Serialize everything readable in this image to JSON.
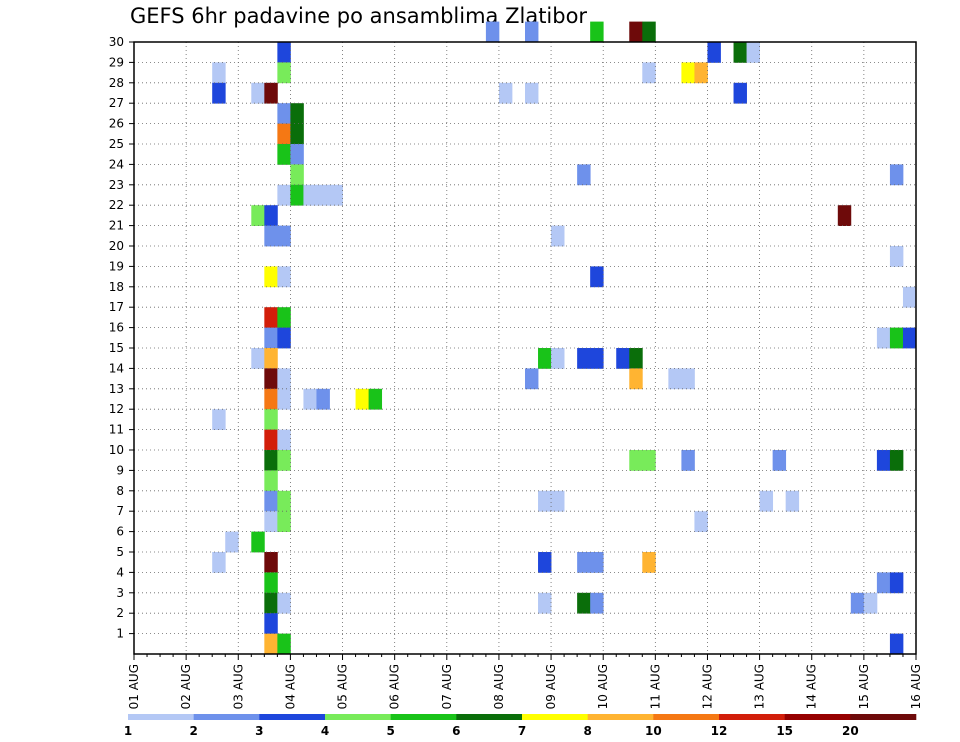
{
  "chart_data": {
    "type": "heatmap",
    "title": "GEFS 6hr padavine po ansamblima Zlatibor",
    "xlabel": "",
    "ylabel": "",
    "x_ticks": [
      "01 AUG",
      "02 AUG",
      "03 AUG",
      "04 AUG",
      "05 AUG",
      "06 AUG",
      "07 AUG",
      "08 AUG",
      "09 AUG",
      "10 AUG",
      "11 AUG",
      "12 AUG",
      "13 AUG",
      "14 AUG",
      "15 AUG",
      "16 AUG"
    ],
    "y_ticks": [
      1,
      2,
      3,
      4,
      5,
      6,
      7,
      8,
      9,
      10,
      11,
      12,
      13,
      14,
      15,
      16,
      17,
      18,
      19,
      20,
      21,
      22,
      23,
      24,
      25,
      26,
      27,
      28,
      29,
      30
    ],
    "x_unit": "6-hour step from 01 AUG 00Z",
    "xlim": [
      0,
      60
    ],
    "ylim": [
      0,
      30
    ],
    "grid": true,
    "colorbar": {
      "labels": [
        "1",
        "2",
        "3",
        "4",
        "5",
        "6",
        "7",
        "8",
        "10",
        "12",
        "15",
        "20"
      ],
      "colors": [
        "#b4c8f5",
        "#6e91eb",
        "#1e46dc",
        "#78eb5a",
        "#19c319",
        "#0a6e0a",
        "#ffff00",
        "#ffb432",
        "#f57814",
        "#d21e0a",
        "#960000",
        "#6e0a0a"
      ]
    },
    "cells": [
      [
        27,
        30,
        1
      ],
      [
        30,
        30,
        1
      ],
      [
        35,
        30,
        4
      ],
      [
        38,
        30,
        11
      ],
      [
        39,
        30,
        5
      ],
      [
        11,
        29,
        2
      ],
      [
        44,
        29,
        2
      ],
      [
        46,
        29,
        5
      ],
      [
        47,
        29,
        0
      ],
      [
        6,
        28,
        0
      ],
      [
        11,
        28,
        3
      ],
      [
        39,
        28,
        0
      ],
      [
        42,
        28,
        6
      ],
      [
        43,
        28,
        7
      ],
      [
        6,
        27,
        2
      ],
      [
        9,
        27,
        0
      ],
      [
        10,
        27,
        11
      ],
      [
        28,
        27,
        0
      ],
      [
        30,
        27,
        0
      ],
      [
        46,
        27,
        2
      ],
      [
        11,
        26,
        1
      ],
      [
        12,
        26,
        5
      ],
      [
        11,
        25,
        8
      ],
      [
        12,
        25,
        5
      ],
      [
        11,
        24,
        4
      ],
      [
        12,
        24,
        1
      ],
      [
        12,
        23,
        3
      ],
      [
        34,
        23,
        1
      ],
      [
        58,
        23,
        1
      ],
      [
        11,
        22,
        0
      ],
      [
        12,
        22,
        4
      ],
      [
        13,
        22,
        0
      ],
      [
        14,
        22,
        0
      ],
      [
        15,
        22,
        0
      ],
      [
        9,
        21,
        3
      ],
      [
        10,
        21,
        2
      ],
      [
        54,
        21,
        11
      ],
      [
        10,
        20,
        1
      ],
      [
        11,
        20,
        1
      ],
      [
        32,
        20,
        0
      ],
      [
        58,
        19,
        0
      ],
      [
        10,
        18,
        6
      ],
      [
        11,
        18,
        0
      ],
      [
        35,
        18,
        2
      ],
      [
        59,
        17,
        0
      ],
      [
        10,
        16,
        9
      ],
      [
        11,
        16,
        4
      ],
      [
        10,
        15,
        1
      ],
      [
        11,
        15,
        2
      ],
      [
        57,
        15,
        0
      ],
      [
        58,
        15,
        4
      ],
      [
        59,
        15,
        2
      ],
      [
        9,
        14,
        0
      ],
      [
        10,
        14,
        7
      ],
      [
        31,
        14,
        4
      ],
      [
        32,
        14,
        0
      ],
      [
        34,
        14,
        2
      ],
      [
        35,
        14,
        2
      ],
      [
        37,
        14,
        2
      ],
      [
        38,
        14,
        5
      ],
      [
        10,
        13,
        11
      ],
      [
        11,
        13,
        0
      ],
      [
        30,
        13,
        1
      ],
      [
        38,
        13,
        7
      ],
      [
        41,
        13,
        0
      ],
      [
        42,
        13,
        0
      ],
      [
        10,
        12,
        8
      ],
      [
        11,
        12,
        0
      ],
      [
        13,
        12,
        0
      ],
      [
        14,
        12,
        1
      ],
      [
        17,
        12,
        6
      ],
      [
        18,
        12,
        4
      ],
      [
        6,
        11,
        0
      ],
      [
        10,
        11,
        3
      ],
      [
        10,
        10,
        9
      ],
      [
        11,
        10,
        0
      ],
      [
        10,
        9,
        5
      ],
      [
        11,
        9,
        3
      ],
      [
        38,
        9,
        3
      ],
      [
        39,
        9,
        3
      ],
      [
        42,
        9,
        1
      ],
      [
        49,
        9,
        1
      ],
      [
        57,
        9,
        2
      ],
      [
        58,
        9,
        5
      ],
      [
        10,
        8,
        3
      ],
      [
        10,
        7,
        1
      ],
      [
        11,
        7,
        3
      ],
      [
        31,
        7,
        0
      ],
      [
        32,
        7,
        0
      ],
      [
        48,
        7,
        0
      ],
      [
        50,
        7,
        0
      ],
      [
        10,
        6,
        0
      ],
      [
        11,
        6,
        3
      ],
      [
        43,
        6,
        0
      ],
      [
        7,
        5,
        0
      ],
      [
        9,
        5,
        4
      ],
      [
        6,
        4,
        0
      ],
      [
        10,
        4,
        11
      ],
      [
        31,
        4,
        2
      ],
      [
        34,
        4,
        1
      ],
      [
        35,
        4,
        1
      ],
      [
        39,
        4,
        7
      ],
      [
        10,
        3,
        4
      ],
      [
        57,
        3,
        1
      ],
      [
        58,
        3,
        2
      ],
      [
        10,
        2,
        5
      ],
      [
        11,
        2,
        0
      ],
      [
        31,
        2,
        0
      ],
      [
        34,
        2,
        5
      ],
      [
        35,
        2,
        1
      ],
      [
        55,
        2,
        1
      ],
      [
        56,
        2,
        0
      ],
      [
        10,
        1,
        2
      ],
      [
        10,
        0,
        7
      ],
      [
        11,
        0,
        4
      ],
      [
        58,
        0,
        2
      ]
    ]
  }
}
